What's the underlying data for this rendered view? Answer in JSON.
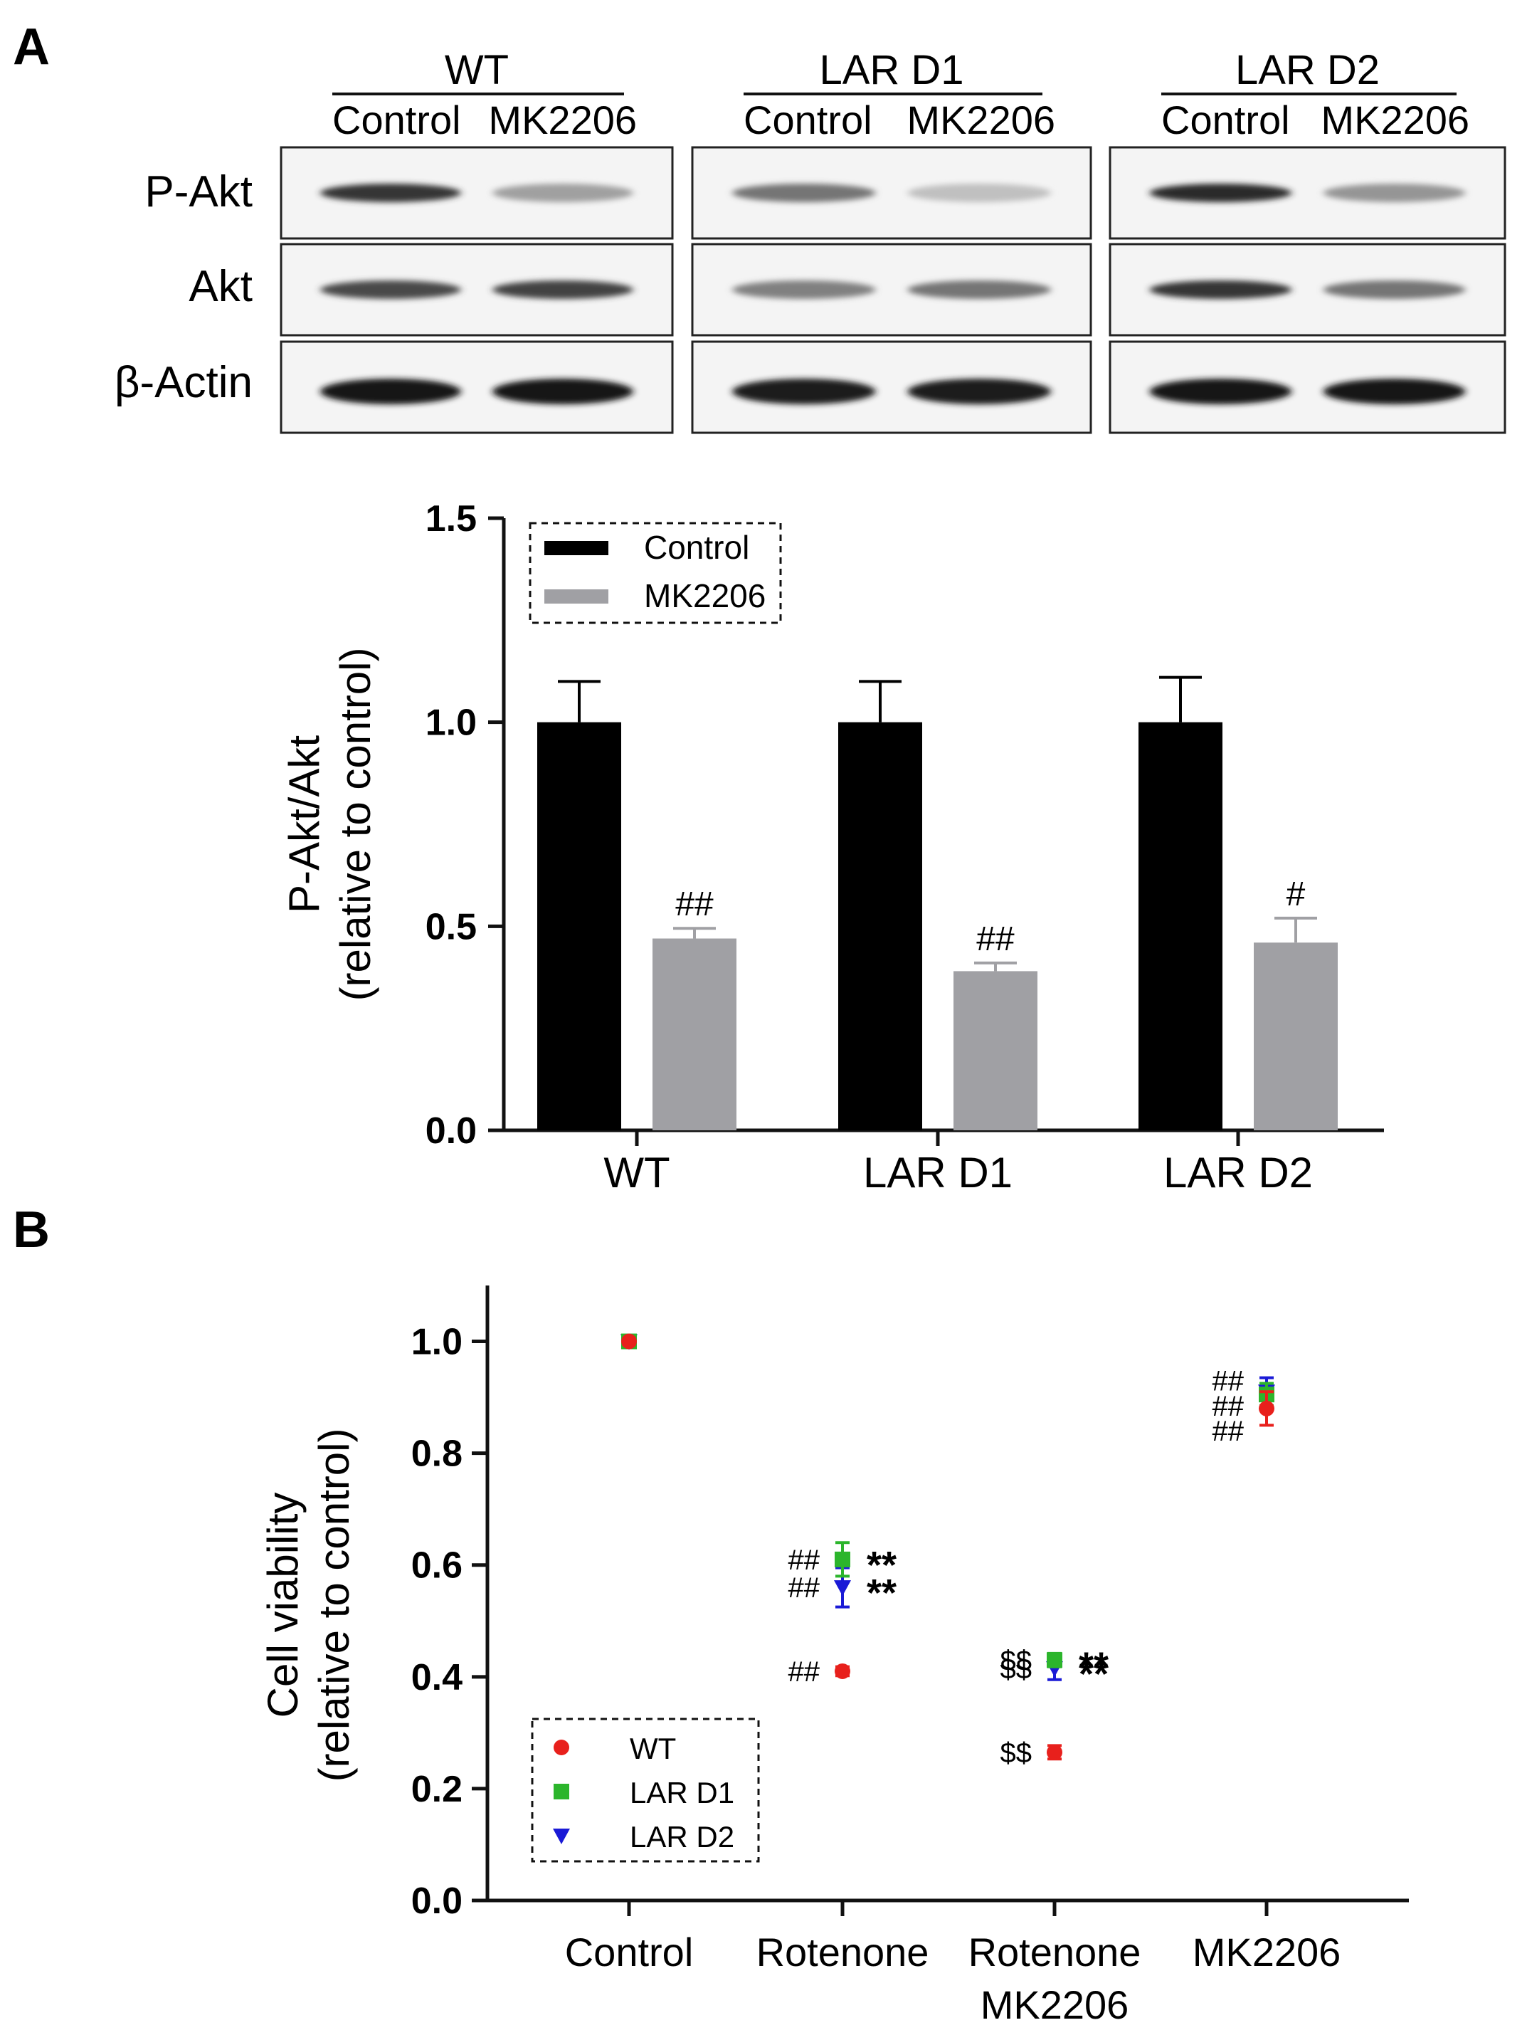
{
  "panels": {
    "a_letter": "A",
    "b_letter": "B"
  },
  "blot": {
    "groups": [
      {
        "name": "WT",
        "lanes": [
          "Control",
          "MK2206"
        ]
      },
      {
        "name": "LAR D1",
        "lanes": [
          "Control",
          "MK2206"
        ]
      },
      {
        "name": "LAR D2",
        "lanes": [
          "Control",
          "MK2206"
        ]
      }
    ],
    "rows": [
      "P-Akt",
      "Akt",
      "β-Actin"
    ],
    "band_intensity": [
      [
        [
          0.85,
          0.35
        ],
        [
          0.55,
          0.2
        ],
        [
          0.9,
          0.4
        ]
      ],
      [
        [
          0.75,
          0.78
        ],
        [
          0.5,
          0.55
        ],
        [
          0.85,
          0.55
        ]
      ],
      [
        [
          1.0,
          1.0
        ],
        [
          0.95,
          0.95
        ],
        [
          1.0,
          1.0
        ]
      ]
    ]
  },
  "chart_data": [
    {
      "type": "bar",
      "categories": [
        "WT",
        "LAR D1",
        "LAR D2"
      ],
      "series": [
        {
          "name": "Control",
          "color": "#000000",
          "values": [
            1.0,
            1.0,
            1.0
          ],
          "errors": [
            0.1,
            0.1,
            0.11
          ]
        },
        {
          "name": "MK2206",
          "color": "#a0a0a4",
          "values": [
            0.47,
            0.39,
            0.46
          ],
          "errors": [
            0.025,
            0.02,
            0.06
          ]
        }
      ],
      "annotations": [
        "##",
        "##",
        "#"
      ],
      "ylabel": "P-Akt/Akt",
      "ylabel2": "(relative to control)",
      "ylim": [
        0,
        1.5
      ],
      "yticks": [
        "0.0",
        "0.5",
        "1.0",
        "1.5"
      ],
      "legend_position": "top-left"
    },
    {
      "type": "scatter",
      "categories": [
        "Control",
        "Rotenone",
        "Rotenone",
        "MK2206"
      ],
      "category_line2": [
        "",
        "",
        "MK2206",
        ""
      ],
      "series": [
        {
          "name": "WT",
          "color": "#e8201c",
          "marker": "circle",
          "values": [
            1.0,
            0.41,
            0.265,
            0.88
          ],
          "errors": [
            0.005,
            0.008,
            0.012,
            0.03
          ]
        },
        {
          "name": "LAR D1",
          "color": "#2cb52c",
          "marker": "square",
          "values": [
            1.0,
            0.61,
            0.43,
            0.905
          ],
          "errors": [
            0.005,
            0.03,
            0.012,
            0.02
          ]
        },
        {
          "name": "LAR D2",
          "color": "#1a1ad6",
          "marker": "triangle-down",
          "values": [
            1.0,
            0.56,
            0.415,
            0.91
          ],
          "errors": [
            0.005,
            0.035,
            0.02,
            0.025
          ]
        }
      ],
      "annotations": [
        {
          "category": 1,
          "left": [
            "##",
            "##",
            "##"
          ],
          "right": [
            "**",
            "**"
          ]
        },
        {
          "category": 2,
          "left": [
            "$$",
            "$$",
            "$$"
          ],
          "right": [
            "**",
            "**"
          ]
        },
        {
          "category": 3,
          "left": [
            "##",
            "##",
            "##"
          ],
          "right": []
        }
      ],
      "ylabel": "Cell viability",
      "ylabel2": "(relative to control)",
      "ylim": [
        0,
        1.1
      ],
      "yticks": [
        "0.0",
        "0.2",
        "0.4",
        "0.6",
        "0.8",
        "1.0"
      ],
      "legend_position": "bottom-left"
    }
  ]
}
